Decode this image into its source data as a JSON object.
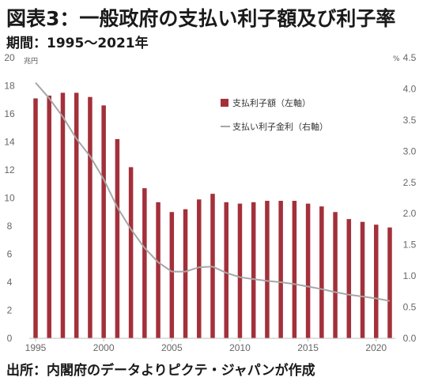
{
  "header": {
    "title": "図表3：一般政府の支払い利子額及び利子率",
    "subtitle": "期間：1995～2021年"
  },
  "footer": {
    "source": "出所：内閣府のデータよりピクテ・ジャパンが作成"
  },
  "chart_data": {
    "type": "bar",
    "title": "図表3：一般政府の支払い利子額及び利子率",
    "subtitle": "期間：1995～2021年",
    "x": [
      1995,
      1996,
      1997,
      1998,
      1999,
      2000,
      2001,
      2002,
      2003,
      2004,
      2005,
      2006,
      2007,
      2008,
      2009,
      2010,
      2011,
      2012,
      2013,
      2014,
      2015,
      2016,
      2017,
      2018,
      2019,
      2020,
      2021
    ],
    "x_tick_labels": [
      "1995",
      "2000",
      "2005",
      "2010",
      "2015",
      "2020"
    ],
    "x_ticks": [
      1995,
      2000,
      2005,
      2010,
      2015,
      2020
    ],
    "left_axis": {
      "unit": "兆円",
      "ylim": [
        0,
        20
      ],
      "ticks": [
        0,
        2,
        4,
        6,
        8,
        10,
        12,
        14,
        16,
        18,
        20
      ]
    },
    "right_axis": {
      "unit": "%",
      "ylim": [
        0,
        4.5
      ],
      "ticks": [
        0.0,
        0.5,
        1.0,
        1.5,
        2.0,
        2.5,
        3.0,
        3.5,
        4.0,
        4.5
      ],
      "tick_labels": [
        "0.0",
        "0.5",
        "1.0",
        "1.5",
        "2.0",
        "2.5",
        "3.0",
        "3.5",
        "4.0",
        "4.5"
      ]
    },
    "series": [
      {
        "name": "支払利子額（左軸）",
        "type": "bar",
        "axis": "left",
        "color": "#a3303a",
        "values": [
          17.1,
          17.3,
          17.5,
          17.5,
          17.2,
          16.6,
          14.2,
          12.2,
          10.7,
          9.7,
          9.0,
          9.2,
          9.9,
          10.3,
          9.7,
          9.6,
          9.7,
          9.8,
          9.8,
          9.8,
          9.6,
          9.4,
          9.0,
          8.5,
          8.3,
          8.1,
          7.9
        ]
      },
      {
        "name": "支払い利子金利（右軸）",
        "type": "line",
        "axis": "right",
        "color": "#a6a6a6",
        "values": [
          4.1,
          3.85,
          3.55,
          3.2,
          2.92,
          2.55,
          2.1,
          1.75,
          1.45,
          1.22,
          1.07,
          1.07,
          1.14,
          1.15,
          1.05,
          0.98,
          0.95,
          0.92,
          0.9,
          0.87,
          0.83,
          0.79,
          0.74,
          0.7,
          0.67,
          0.64,
          0.6
        ]
      }
    ],
    "legend": "upper-right",
    "grid": false
  }
}
